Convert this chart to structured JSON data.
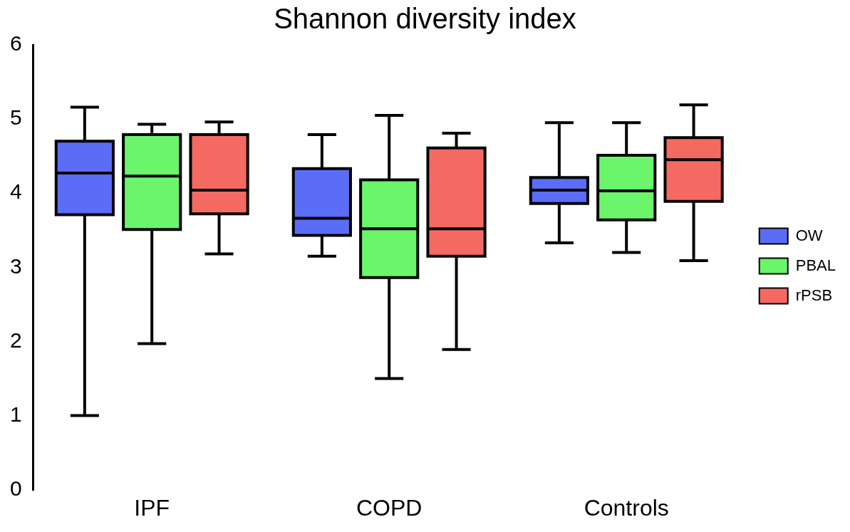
{
  "chart_data": {
    "type": "box",
    "title": "Shannon diversity index",
    "categories": [
      "IPF",
      "COPD",
      "Controls"
    ],
    "series": [
      {
        "name": "OW",
        "color": "#5b6cf6",
        "boxes": [
          {
            "low": 1.0,
            "q1": 3.71,
            "median": 4.27,
            "q3": 4.7,
            "high": 5.16
          },
          {
            "low": 3.15,
            "q1": 3.43,
            "median": 3.66,
            "q3": 4.33,
            "high": 4.79
          },
          {
            "low": 3.33,
            "q1": 3.86,
            "median": 4.04,
            "q3": 4.21,
            "high": 4.95
          }
        ]
      },
      {
        "name": "PBAL",
        "color": "#6af56a",
        "boxes": [
          {
            "low": 1.97,
            "q1": 3.51,
            "median": 4.23,
            "q3": 4.79,
            "high": 4.93
          },
          {
            "low": 1.5,
            "q1": 2.86,
            "median": 3.52,
            "q3": 4.18,
            "high": 5.05
          },
          {
            "low": 3.2,
            "q1": 3.64,
            "median": 4.03,
            "q3": 4.51,
            "high": 4.95
          }
        ]
      },
      {
        "name": "rPSB",
        "color": "#f46a62",
        "boxes": [
          {
            "low": 3.18,
            "q1": 3.72,
            "median": 4.04,
            "q3": 4.79,
            "high": 4.96
          },
          {
            "low": 1.89,
            "q1": 3.15,
            "median": 3.52,
            "q3": 4.61,
            "high": 4.81
          },
          {
            "low": 3.09,
            "q1": 3.89,
            "median": 4.45,
            "q3": 4.75,
            "high": 5.19
          }
        ]
      }
    ],
    "ylim": [
      0,
      6
    ],
    "yticks": [
      0,
      1,
      2,
      3,
      4,
      5,
      6
    ],
    "grid": false,
    "legend": "right"
  }
}
